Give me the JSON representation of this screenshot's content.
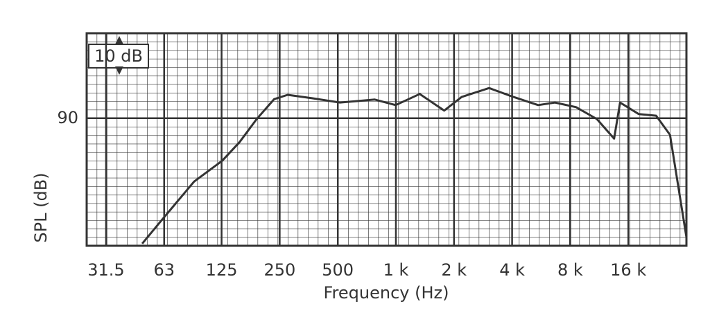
{
  "chart_data": {
    "type": "line",
    "xlabel": "Frequency (Hz)",
    "ylabel": "SPL (dB)",
    "annotation": "10 dB",
    "xscale": "log",
    "xlim": [
      25,
      32000
    ],
    "ylim": [
      60,
      110
    ],
    "xticks": [
      31.5,
      63,
      125,
      250,
      500,
      {
        "value": 1000,
        "label": "1 k"
      },
      {
        "value": 2000,
        "label": "2 k"
      },
      {
        "value": 4000,
        "label": "4 k"
      },
      {
        "value": 8000,
        "label": "8 k"
      },
      {
        "value": 16000,
        "label": "16 k"
      }
    ],
    "yticks": [
      90
    ],
    "grid": true,
    "x": [
      48.5,
      59.6,
      90,
      126,
      155,
      190,
      234,
      275,
      368,
      513,
      777,
      997,
      1328,
      1780,
      2190,
      3040,
      4070,
      5460,
      6670,
      8580,
      11000,
      13500,
      14500,
      18100,
      22300,
      26300,
      32000
    ],
    "series": [
      {
        "color": "#333333",
        "values": [
          60.5,
          65.4,
          75.1,
          80,
          84.4,
          89.8,
          94.5,
          95.5,
          94.7,
          93.7,
          94.4,
          93.1,
          95.7,
          91.8,
          95,
          97.1,
          95,
          93.1,
          93.7,
          92.6,
          89.8,
          85.2,
          93.7,
          91,
          90.6,
          86.1,
          62
        ]
      }
    ]
  }
}
